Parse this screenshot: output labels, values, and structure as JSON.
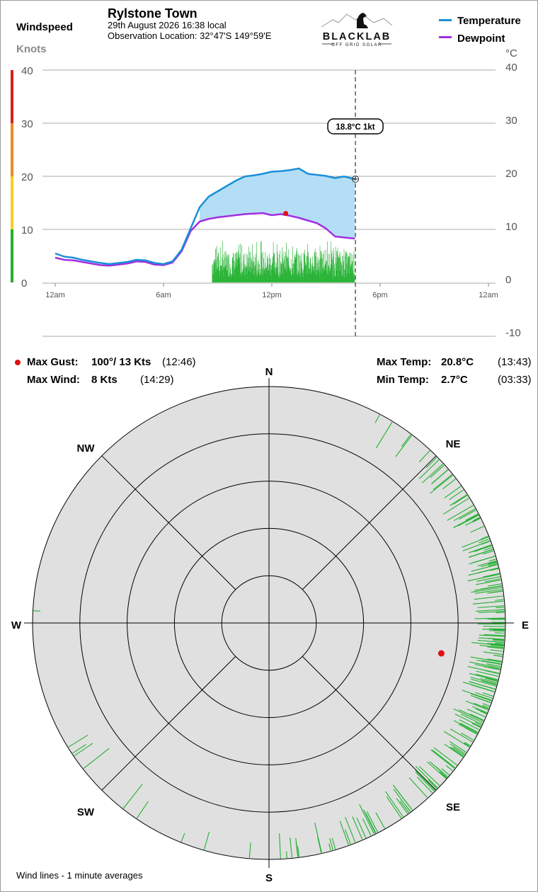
{
  "station": {
    "name": "Rylstone Town",
    "datetime": "29th August 2026  16:38 local",
    "location": "Observation Location: 32°47'S 149°59'E"
  },
  "logo": {
    "brand": "BLACKLAB",
    "tagline": "OFF GRID SOLAR",
    "icon": "dog-on-mountain-logo"
  },
  "windspeed_panel": {
    "title": "Windspeed",
    "unit": "Knots"
  },
  "legend": [
    {
      "label": "Temperature",
      "color": "#1a8fd8"
    },
    {
      "label": "Dewpoint",
      "color": "#a030e0"
    }
  ],
  "temp_unit": "°C",
  "cursor_label": "18.8°C  1kt",
  "stats": {
    "max_gust_label": "Max Gust:",
    "max_gust_value": "100°/ 13 Kts",
    "max_gust_time": "(12:46)",
    "max_wind_label": "Max Wind:",
    "max_wind_value": "8 Kts",
    "max_wind_time": "(14:29)",
    "max_temp_label": "Max Temp:",
    "max_temp_value": "20.8°C",
    "max_temp_time": "(13:43)",
    "min_temp_label": "Min Temp:",
    "min_temp_value": "2.7°C",
    "min_temp_time": "(03:33)"
  },
  "compass": {
    "N": "N",
    "NE": "NE",
    "E": "E",
    "SE": "SE",
    "S": "S",
    "SW": "SW",
    "W": "W",
    "NW": "NW"
  },
  "footnote": "Wind lines - 1 minute averages",
  "colors": {
    "temperature": "#1a8fd8",
    "dewpoint": "#a030e0",
    "fill": "#b4def5",
    "wind": "#22b030",
    "gust": "#e01010",
    "compass_bg": "#e0e0e0",
    "scale_red": "#d62020",
    "scale_orange": "#f08a24",
    "scale_yellow": "#f0d020",
    "scale_green": "#22b030"
  },
  "chart_data": [
    {
      "type": "line",
      "x_ticks": [
        "12am",
        "6am",
        "12pm",
        "6pm",
        "12am"
      ],
      "x_range_hours": [
        0,
        24
      ],
      "current_time_hours": 16.63,
      "left_axis": {
        "label": "Windspeed",
        "unit": "Knots",
        "ticks": [
          0,
          10,
          20,
          30,
          40
        ],
        "ylim": [
          0,
          40
        ]
      },
      "right_axis": {
        "unit": "°C",
        "ticks": [
          -10,
          0,
          10,
          20,
          30,
          40
        ],
        "ylim": [
          -10,
          40
        ]
      },
      "series": [
        {
          "name": "Temperature",
          "x": [
            0,
            0.5,
            1,
            1.5,
            2,
            2.5,
            3,
            3.5,
            4,
            4.5,
            5,
            5.5,
            6,
            6.5,
            7,
            7.5,
            8,
            8.5,
            9,
            9.5,
            10,
            10.5,
            11,
            11.5,
            12,
            12.5,
            13,
            13.5,
            14,
            14.5,
            15,
            15.5,
            16,
            16.6
          ],
          "y": [
            4.8,
            4.2,
            4.0,
            3.6,
            3.3,
            3.0,
            2.8,
            3.0,
            3.2,
            3.6,
            3.5,
            3.0,
            2.8,
            3.3,
            5.5,
            9.5,
            13.5,
            15.5,
            16.5,
            17.5,
            18.5,
            19.3,
            19.5,
            19.8,
            20.2,
            20.3,
            20.5,
            20.8,
            19.8,
            19.6,
            19.4,
            19.0,
            19.3,
            18.8
          ]
        },
        {
          "name": "Dewpoint",
          "x": [
            0,
            0.5,
            1,
            1.5,
            2,
            2.5,
            3,
            3.5,
            4,
            4.5,
            5,
            5.5,
            6,
            6.5,
            7,
            7.5,
            8,
            8.5,
            9,
            9.5,
            10,
            10.5,
            11,
            11.5,
            12,
            12.5,
            13,
            13.5,
            14,
            14.5,
            15,
            15.5,
            16,
            16.6
          ],
          "y": [
            4.0,
            3.6,
            3.5,
            3.2,
            2.9,
            2.6,
            2.5,
            2.7,
            2.9,
            3.3,
            3.2,
            2.7,
            2.6,
            3.1,
            5.2,
            9.0,
            10.8,
            11.3,
            11.6,
            11.8,
            12.0,
            12.2,
            12.3,
            12.4,
            12.0,
            12.2,
            11.9,
            11.5,
            11.0,
            10.5,
            9.5,
            8.0,
            7.8,
            7.6
          ]
        }
      ],
      "wind_bars_knots": {
        "start_hour": 8.7,
        "end_hour": 16.6,
        "typical_range": [
          1,
          6
        ],
        "peak": 8
      },
      "max_gust_marker": {
        "hour": 12.77,
        "knots": 13
      }
    },
    {
      "type": "scatter",
      "subtype": "polar-wind-rose",
      "radial_axis_rings": 5,
      "directions": [
        "N",
        "NE",
        "E",
        "SE",
        "S",
        "SW",
        "W",
        "NW"
      ],
      "wind_lines": [
        {
          "from_deg": 30,
          "count": 2
        },
        {
          "from_deg": 40,
          "count": 3
        },
        {
          "from_deg": 50,
          "count": 10
        },
        {
          "from_deg": 60,
          "count": 14
        },
        {
          "from_deg": 70,
          "count": 18
        },
        {
          "from_deg": 80,
          "count": 22
        },
        {
          "from_deg": 90,
          "count": 26
        },
        {
          "from_deg": 100,
          "count": 28
        },
        {
          "from_deg": 110,
          "count": 26
        },
        {
          "from_deg": 120,
          "count": 20
        },
        {
          "from_deg": 130,
          "count": 14
        },
        {
          "from_deg": 140,
          "count": 10
        },
        {
          "from_deg": 150,
          "count": 8
        },
        {
          "from_deg": 160,
          "count": 8
        },
        {
          "from_deg": 170,
          "count": 6
        },
        {
          "from_deg": 180,
          "count": 3
        },
        {
          "from_deg": 200,
          "count": 2
        },
        {
          "from_deg": 215,
          "count": 2
        },
        {
          "from_deg": 235,
          "count": 4
        },
        {
          "from_deg": 270,
          "count": 1
        }
      ],
      "max_gust": {
        "from_deg": 100,
        "knots": 13
      }
    }
  ]
}
